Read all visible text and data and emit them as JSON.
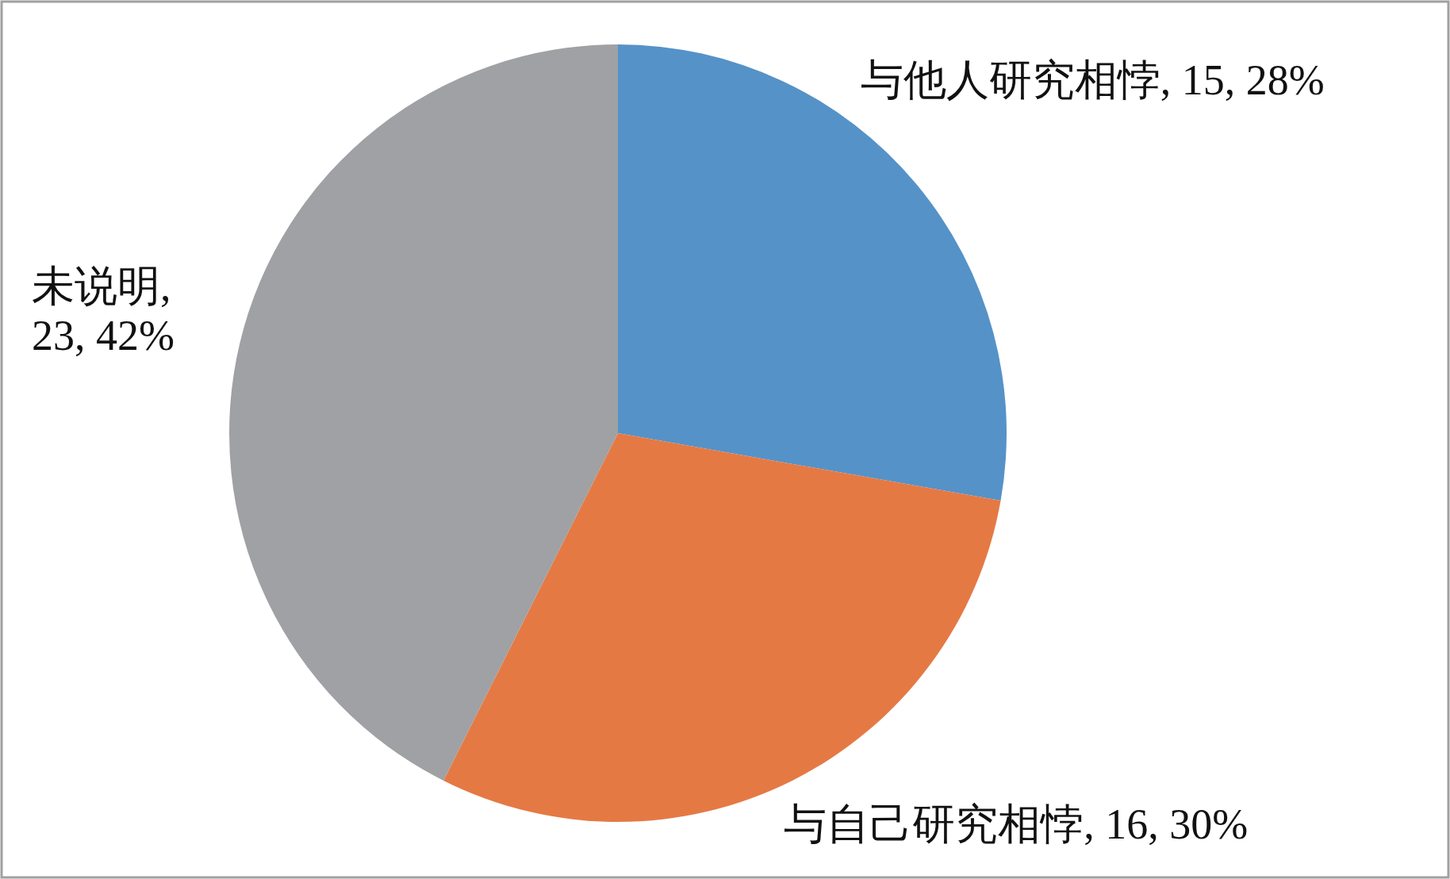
{
  "chart_data": {
    "type": "pie",
    "categories": [
      "与他人研究相悖",
      "与自己研究相悖",
      "未说明"
    ],
    "values": [
      15,
      16,
      23
    ],
    "value_labels": [
      ", 15, 28%",
      ", 16, 30%",
      ", 23, 42%"
    ],
    "colors": [
      "#5592c8",
      "#e57944",
      "#a0a1a4"
    ],
    "legend": false
  }
}
